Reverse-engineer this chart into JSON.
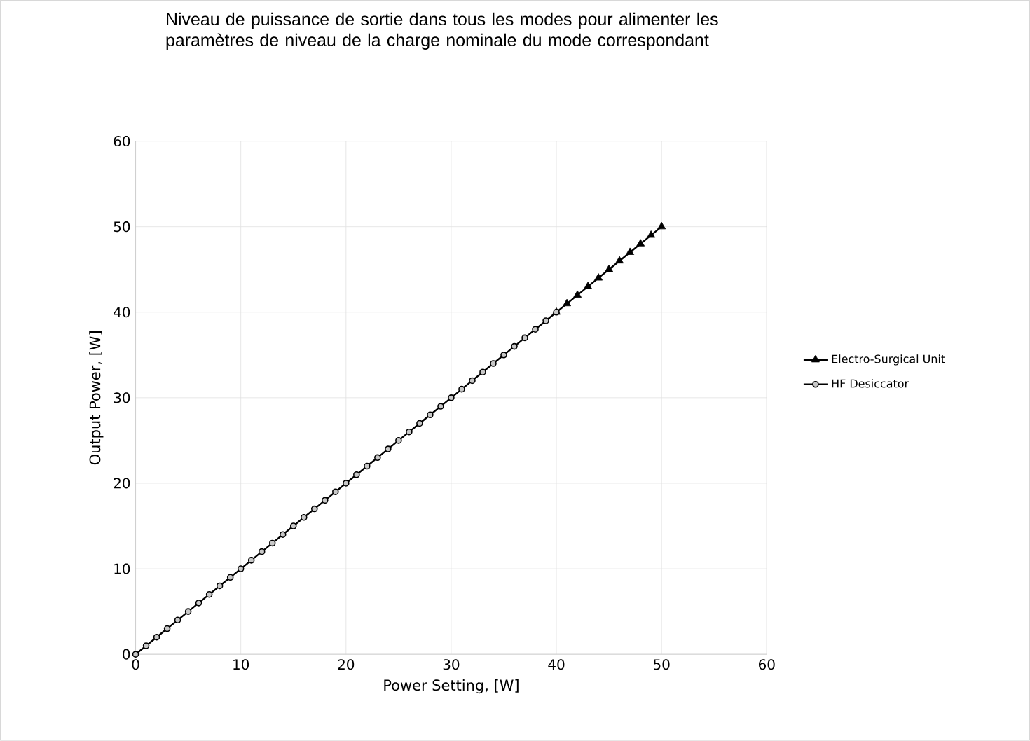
{
  "chart_data": {
    "type": "line",
    "title": "Niveau de puissance de sortie dans tous les modes pour alimenter les paramètres de niveau de la charge nominale du mode correspondant",
    "xlabel": "Power Setting, [W]",
    "ylabel": "Output Power, [W]",
    "series": [
      {
        "name": "Electro-Surgical Unit",
        "color": "#000000",
        "marker": "triangle",
        "x": [
          40,
          41,
          42,
          43,
          44,
          45,
          46,
          47,
          48,
          49,
          50
        ],
        "values": [
          40,
          41,
          42,
          43,
          44,
          45,
          46,
          47,
          48,
          49,
          50
        ]
      },
      {
        "name": "HF Desiccator",
        "color": "#000000",
        "marker": "circle",
        "x": [
          0,
          1,
          2,
          3,
          4,
          5,
          6,
          7,
          8,
          9,
          10,
          11,
          12,
          13,
          14,
          15,
          16,
          17,
          18,
          19,
          20,
          21,
          22,
          23,
          24,
          25,
          26,
          27,
          28,
          29,
          30,
          31,
          32,
          33,
          34,
          35,
          36,
          37,
          38,
          39,
          40
        ],
        "values": [
          0,
          1,
          2,
          3,
          4,
          5,
          6,
          7,
          8,
          9,
          10,
          11,
          12,
          13,
          14,
          15,
          16,
          17,
          18,
          19,
          20,
          21,
          22,
          23,
          24,
          25,
          26,
          27,
          28,
          29,
          30,
          31,
          32,
          33,
          34,
          35,
          36,
          37,
          38,
          39,
          40
        ]
      }
    ],
    "xlim": [
      0,
      60
    ],
    "ylim": [
      0,
      60
    ],
    "xticks": [
      0,
      10,
      20,
      30,
      40,
      50,
      60
    ],
    "yticks": [
      0,
      10,
      20,
      30,
      40,
      50,
      60
    ],
    "grid": true,
    "legend": "right"
  }
}
